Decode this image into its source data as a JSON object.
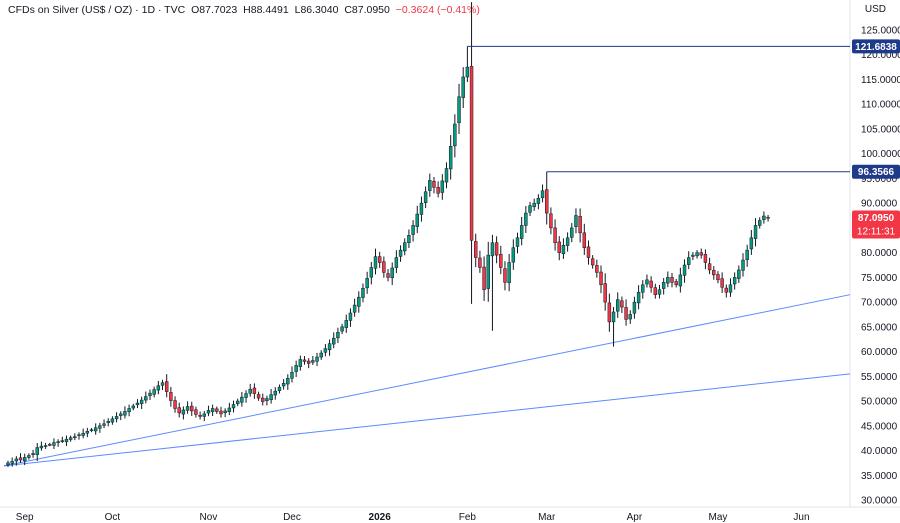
{
  "header": {
    "symbol": "CFDs on Silver (US$ / OZ) · 1D · TVC",
    "open": "O87.7023",
    "high": "H88.4491",
    "low": "L86.3040",
    "close": "C87.0950",
    "change": "−0.3624 (−0.41%)"
  },
  "currency": "USD",
  "chart_data": {
    "type": "candlestick",
    "title": "",
    "xlabel": "",
    "ylabel": "",
    "ylim": [
      30,
      125
    ],
    "yticks": [
      30,
      35,
      40,
      45,
      50,
      55,
      60,
      65,
      70,
      75,
      80,
      85,
      90,
      95,
      100,
      105,
      110,
      115,
      120,
      125
    ],
    "ytick_labels": [
      "30.0000",
      "35.0000",
      "40.0000",
      "45.0000",
      "50.0000",
      "55.0000",
      "60.0000",
      "65.0000",
      "70.0000",
      "75.0000",
      "80.0000",
      "85.0000",
      "90.0000",
      "95.0000",
      "100.0000",
      "105.0000",
      "110.0000",
      "115.0000",
      "120.0000",
      "125.0000"
    ],
    "xticks": [
      {
        "label": "Sep",
        "index": 4,
        "bold": false
      },
      {
        "label": "Oct",
        "index": 25,
        "bold": false
      },
      {
        "label": "Nov",
        "index": 48,
        "bold": false
      },
      {
        "label": "Dec",
        "index": 68,
        "bold": false
      },
      {
        "label": "2026",
        "index": 89,
        "bold": true
      },
      {
        "label": "Feb",
        "index": 110,
        "bold": false
      },
      {
        "label": "Mar",
        "index": 129,
        "bold": false
      },
      {
        "label": "Apr",
        "index": 150,
        "bold": false
      },
      {
        "label": "May",
        "index": 170,
        "bold": false
      },
      {
        "label": "Jun",
        "index": 190,
        "bold": false
      }
    ],
    "x_count": 193,
    "closes": [
      37.5,
      37.8,
      38.3,
      38.1,
      38.6,
      39.0,
      39.4,
      40.6,
      40.9,
      41.0,
      41.2,
      41.6,
      41.8,
      42.0,
      42.3,
      42.6,
      42.8,
      43.2,
      43.5,
      43.9,
      44.2,
      44.6,
      45.0,
      45.4,
      45.9,
      46.4,
      46.9,
      47.4,
      47.9,
      48.5,
      49.0,
      49.6,
      50.2,
      50.9,
      51.6,
      52.3,
      53.1,
      53.7,
      51.9,
      50.1,
      48.5,
      47.6,
      48.2,
      48.9,
      48.0,
      47.3,
      46.9,
      47.4,
      48.1,
      48.5,
      47.9,
      47.4,
      48.0,
      48.6,
      49.3,
      50.0,
      50.8,
      51.5,
      52.4,
      51.5,
      50.6,
      49.9,
      50.5,
      51.3,
      52.0,
      52.8,
      53.6,
      54.6,
      55.8,
      57.2,
      58.4,
      58.0,
      57.6,
      58.2,
      58.9,
      59.7,
      60.6,
      61.6,
      62.7,
      63.9,
      65.0,
      66.3,
      67.8,
      69.4,
      71.0,
      72.8,
      74.8,
      77.0,
      79.2,
      78.0,
      76.0,
      75.0,
      76.9,
      79.0,
      80.5,
      82.0,
      83.5,
      85.5,
      87.8,
      90.0,
      92.3,
      94.6,
      93.2,
      92.0,
      94.5,
      97.0,
      101.5,
      106.0,
      111.5,
      115.5,
      117.5,
      82.5,
      79.0,
      77.0,
      72.5,
      79.5,
      82.0,
      79.5,
      77.0,
      74.0,
      78.0,
      81.0,
      83.0,
      85.5,
      88.0,
      89.5,
      90.0,
      91.0,
      92.5,
      88.0,
      85.0,
      82.0,
      80.0,
      81.5,
      83.0,
      85.0,
      87.5,
      84.0,
      81.0,
      79.0,
      77.5,
      76.0,
      73.5,
      70.0,
      66.0,
      68.0,
      70.5,
      69.0,
      66.5,
      67.5,
      70.0,
      72.0,
      73.5,
      74.5,
      73.0,
      71.5,
      72.5,
      74.0,
      75.0,
      74.0,
      73.5,
      75.5,
      77.5,
      79.0,
      79.5,
      80.0,
      79.5,
      78.0,
      76.5,
      75.5,
      74.5,
      73.0,
      72.0,
      73.5,
      75.0,
      76.5,
      78.5,
      80.5,
      83.0,
      85.5,
      86.5,
      87.4,
      87.09
    ],
    "highs_overrides": {
      "110": 121.6838,
      "129": 96.3566
    },
    "lows_overrides": {
      "116": 64.2,
      "145": 61.0
    },
    "annotations": [
      {
        "type": "horizontal-ray",
        "value": 121.6838,
        "label": "121.6838",
        "from_index": 110
      },
      {
        "type": "horizontal-ray",
        "value": 96.3566,
        "label": "96.3566",
        "from_index": 129
      }
    ],
    "trendlines": [
      {
        "from": [
          0,
          36.9
        ],
        "to": [
          193,
          71.5
        ]
      },
      {
        "from": [
          0,
          36.9
        ],
        "to": [
          193,
          55.5
        ]
      }
    ],
    "last_price": {
      "value": 87.095,
      "label": "87.0950",
      "countdown": "12:11:31"
    },
    "colors": {
      "up": "#089981",
      "down": "#f23645",
      "line": "#2962ff",
      "label_bg": "#1e3a8a",
      "price_bg": "#f23645"
    }
  }
}
